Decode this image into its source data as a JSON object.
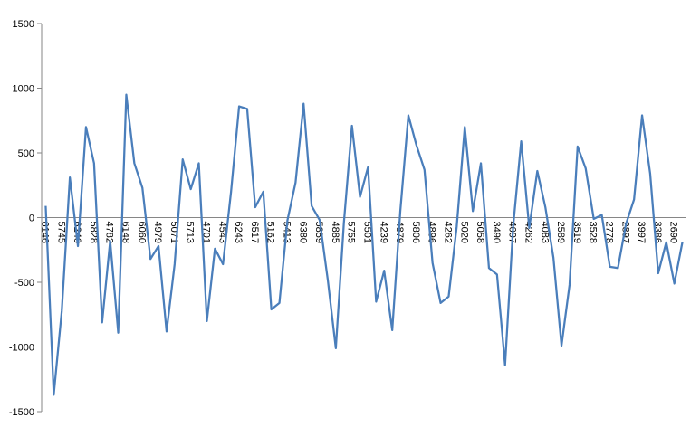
{
  "chart_data": {
    "type": "line",
    "categories": [
      "6146",
      null,
      "5745",
      null,
      "6240",
      null,
      "5828",
      null,
      "4782",
      null,
      "6148",
      null,
      "6060",
      null,
      "4979",
      null,
      "5071",
      null,
      "5713",
      null,
      "4701",
      null,
      "4543",
      null,
      "6243",
      null,
      "6517",
      null,
      "5162",
      null,
      "5413",
      null,
      "6380",
      null,
      "5859",
      null,
      "4885",
      null,
      "5755",
      null,
      "5501",
      null,
      "4239",
      null,
      "4879",
      null,
      "5806",
      null,
      "4896",
      null,
      "4262",
      null,
      "5020",
      null,
      "5058",
      null,
      "3490",
      null,
      "4097",
      null,
      "4262",
      null,
      "4083",
      null,
      "2589",
      null,
      "3519",
      null,
      "3528",
      null,
      "2778",
      null,
      "2897",
      null,
      "3997",
      null,
      "3386",
      null,
      "2690",
      null
    ],
    "series": [
      {
        "color": "#4a7ebb",
        "values": [
          90,
          -1370,
          -720,
          310,
          -220,
          700,
          420,
          -810,
          -180,
          -890,
          950,
          420,
          230,
          -320,
          -220,
          -880,
          -360,
          450,
          220,
          420,
          -800,
          -240,
          -360,
          200,
          860,
          840,
          80,
          200,
          -710,
          -660,
          -20,
          270,
          880,
          90,
          -20,
          -480,
          -1010,
          -40,
          710,
          160,
          390,
          -650,
          -410,
          -870,
          50,
          790,
          560,
          370,
          -350,
          -660,
          -610,
          -70,
          700,
          50,
          420,
          -390,
          -440,
          -1140,
          -70,
          590,
          -80,
          360,
          80,
          -310,
          -990,
          -520,
          550,
          380,
          -10,
          20,
          -380,
          -390,
          -50,
          140,
          790,
          340,
          -430,
          -190,
          -510,
          -190
        ]
      }
    ],
    "ylim": [
      -1500,
      1500
    ],
    "yticks": [
      -1500,
      -1000,
      -500,
      0,
      500,
      1000,
      1500
    ],
    "grid": false
  }
}
